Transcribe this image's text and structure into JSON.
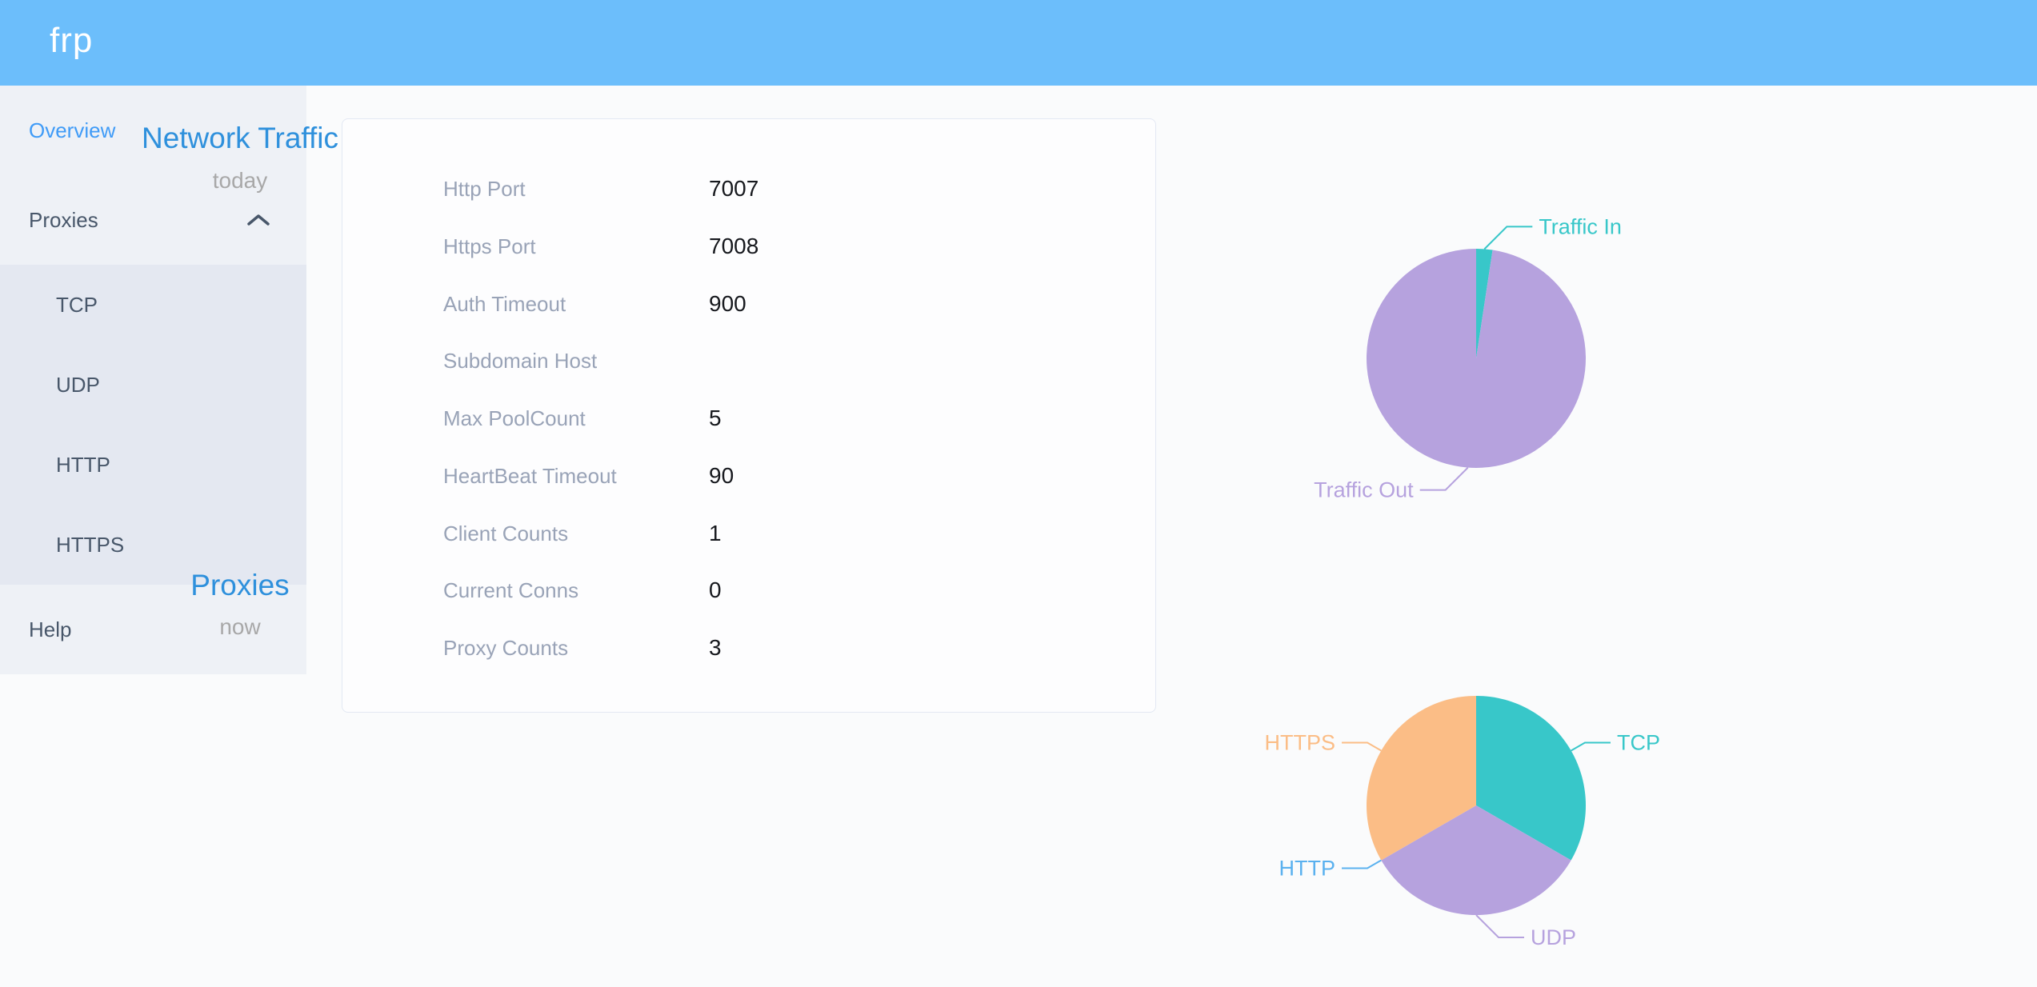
{
  "header": {
    "logo": "frp"
  },
  "sidebar": {
    "items": [
      {
        "label": "Overview",
        "active": true
      },
      {
        "label": "Proxies",
        "expanded": true
      },
      {
        "label": "TCP"
      },
      {
        "label": "UDP"
      },
      {
        "label": "HTTP"
      },
      {
        "label": "HTTPS"
      },
      {
        "label": "Help"
      }
    ]
  },
  "panel": {
    "rows": [
      {
        "label": "Http Port",
        "value": "7007"
      },
      {
        "label": "Https Port",
        "value": "7008"
      },
      {
        "label": "Auth Timeout",
        "value": "900"
      },
      {
        "label": "Subdomain Host",
        "value": ""
      },
      {
        "label": "Max PoolCount",
        "value": "5"
      },
      {
        "label": "HeartBeat Timeout",
        "value": "90"
      },
      {
        "label": "Client Counts",
        "value": "1"
      },
      {
        "label": "Current Conns",
        "value": "0"
      },
      {
        "label": "Proxy Counts",
        "value": "3"
      }
    ]
  },
  "chart_data": [
    {
      "type": "pie",
      "title": "Network Traffic",
      "subtitle": "today",
      "label_position": "outside",
      "legend_position": "none",
      "unit": "% share (estimated from arc angles)",
      "series": [
        {
          "name": "Traffic In",
          "value": 2.4,
          "color": "#38c7c9"
        },
        {
          "name": "Traffic Out",
          "value": 97.6,
          "color": "#b6a2de"
        }
      ]
    },
    {
      "type": "pie",
      "title": "Proxies",
      "subtitle": "now",
      "label_position": "outside",
      "legend_position": "none",
      "unit": "proxy count",
      "series": [
        {
          "name": "TCP",
          "value": 1,
          "color": "#38c7c9"
        },
        {
          "name": "UDP",
          "value": 1,
          "color": "#b6a2de"
        },
        {
          "name": "HTTP",
          "value": 0,
          "color": "#5ab1ef"
        },
        {
          "name": "HTTPS",
          "value": 1,
          "color": "#fbbd86"
        }
      ]
    }
  ],
  "colors": {
    "header_bg": "#6cbefb",
    "sidebar_bg": "#eef1f6",
    "submenu_bg": "#e4e8f1",
    "sidebar_text": "#48576a",
    "sidebar_active": "#3f9bf7",
    "page_bg": "#fafbfc",
    "panel_border": "#e3e8f3",
    "label_color": "#99a3b7",
    "value_color": "#16181d",
    "chart_title": "#2e90dc",
    "chart_subtitle": "#a8a8a8"
  }
}
